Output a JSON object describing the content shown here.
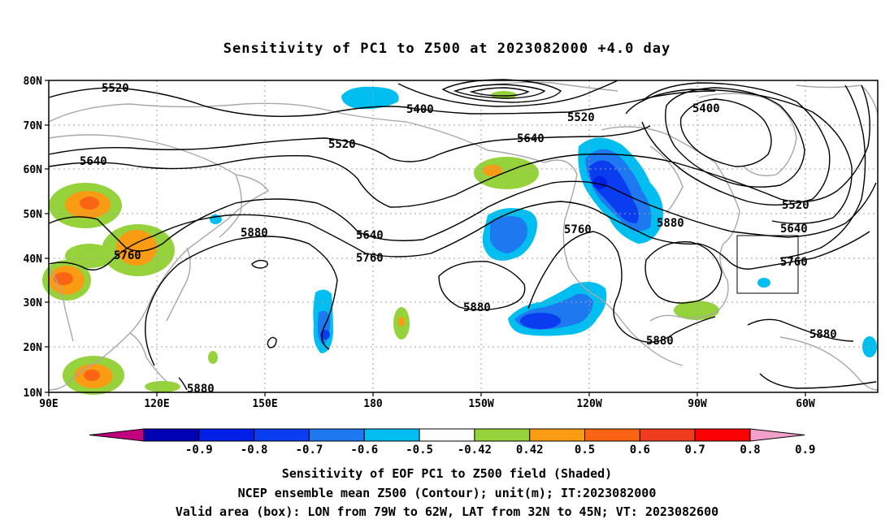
{
  "title": "Sensitivity of PC1 to Z500 at 2023082000 +4.0 day",
  "lat_labels": [
    "80N",
    "70N",
    "60N",
    "50N",
    "40N",
    "30N",
    "20N",
    "10N"
  ],
  "lon_labels": [
    "90E",
    "120E",
    "150E",
    "180",
    "150W",
    "120W",
    "90W",
    "60W"
  ],
  "contour_labels": [
    "5520",
    "5400",
    "5520",
    "5520",
    "5400",
    "5640",
    "5640",
    "5520",
    "5640",
    "5880",
    "5640",
    "5760",
    "5760",
    "5760",
    "5880",
    "5880",
    "5760",
    "5880",
    "5880",
    "5880"
  ],
  "colorbar": {
    "labels": [
      "-0.9",
      "-0.8",
      "-0.7",
      "-0.6",
      "-0.5",
      "-0.42",
      "0.42",
      "0.5",
      "0.6",
      "0.7",
      "0.8",
      "0.9"
    ],
    "colors": [
      "#c0007f",
      "#0000b4",
      "#0020e6",
      "#0a3cf0",
      "#1e78f0",
      "#00bef0",
      "#ffffff",
      "#96d23c",
      "#fa9b14",
      "#fa6414",
      "#f03c1e",
      "#ff0000",
      "#f29fcc"
    ]
  },
  "valid_box": {
    "lon_west": "79W",
    "lon_east": "62W",
    "lat_south": "32N",
    "lat_north": "45N"
  },
  "captions": [
    "Sensitivity of EOF PC1 to Z500 field (Shaded)",
    "NCEP ensemble mean Z500 (Contour); unit(m); IT:2023082000",
    "Valid area (box): LON from 79W to 62W, LAT from 32N to 45N; VT: 2023082600"
  ]
}
